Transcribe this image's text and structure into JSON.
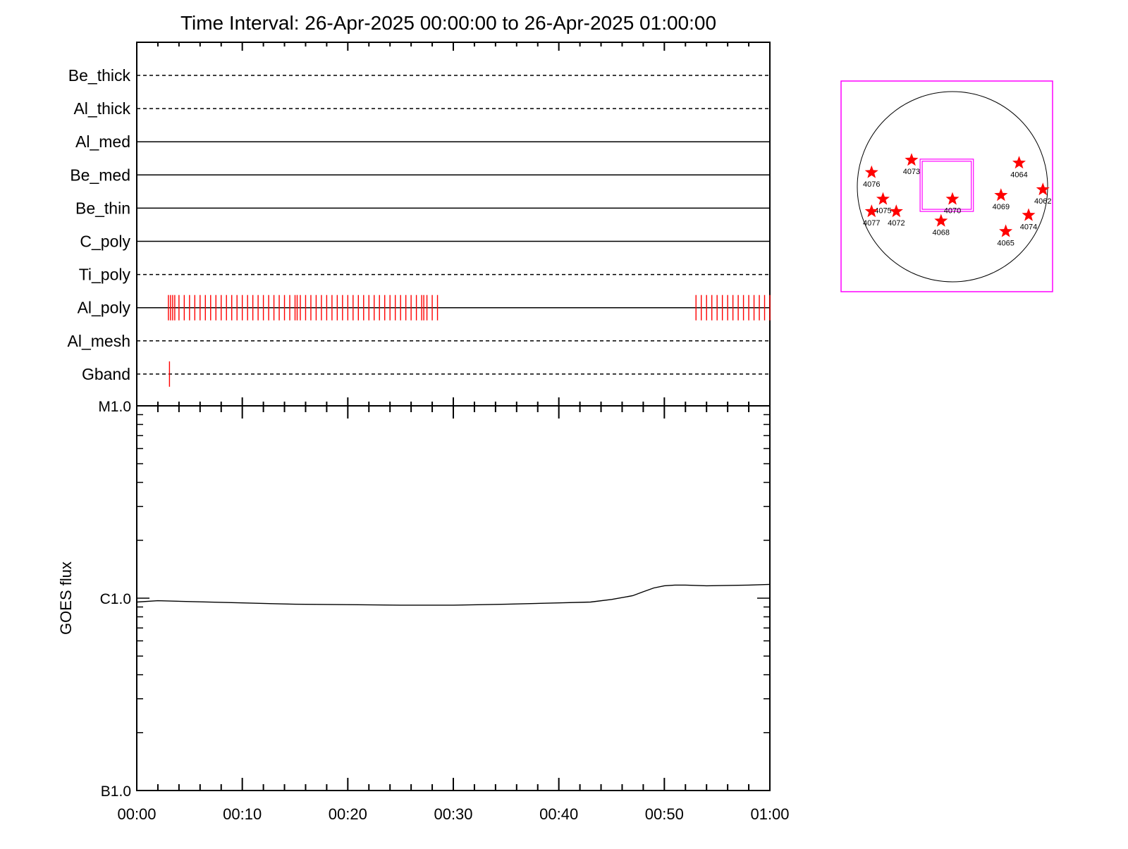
{
  "title": "Time Interval: 26-Apr-2025 00:00:00 to 26-Apr-2025 01:00:00",
  "colors": {
    "axis": "#000000",
    "events": "#ff0000",
    "fov_box": "#ff00ff",
    "star": "#ff0000",
    "disk": "#000000"
  },
  "chart_data": [
    {
      "type": "line",
      "subplot": "filter-timeline",
      "x_unit": "minutes after 00:00",
      "xlim": [
        0,
        60
      ],
      "channels": [
        {
          "name": "Be_thick",
          "line": "dashed",
          "events": []
        },
        {
          "name": "Al_thick",
          "line": "dashed",
          "events": []
        },
        {
          "name": "Al_med",
          "line": "solid",
          "events": []
        },
        {
          "name": "Be_med",
          "line": "solid",
          "events": []
        },
        {
          "name": "Be_thin",
          "line": "solid",
          "events": []
        },
        {
          "name": "C_poly",
          "line": "solid",
          "events": []
        },
        {
          "name": "Ti_poly",
          "line": "dashed",
          "events": []
        },
        {
          "name": "Al_poly",
          "line": "solid",
          "events": [
            3.0,
            3.2,
            3.4,
            3.6,
            4.0,
            4.5,
            5.0,
            5.5,
            6.0,
            6.5,
            7.0,
            7.5,
            8.0,
            8.5,
            9.0,
            9.5,
            10.0,
            10.5,
            11.0,
            11.5,
            12.0,
            12.5,
            13.0,
            13.5,
            14.0,
            14.5,
            15.0,
            15.2,
            15.5,
            16.0,
            16.5,
            17.0,
            17.5,
            18.0,
            18.5,
            19.0,
            19.5,
            20.0,
            20.5,
            21.0,
            21.5,
            22.0,
            22.5,
            23.0,
            23.5,
            24.0,
            24.5,
            25.0,
            25.5,
            26.0,
            26.5,
            27.0,
            27.2,
            27.5,
            28.0,
            28.5,
            53.0,
            53.5,
            54.0,
            54.5,
            55.0,
            55.5,
            56.0,
            56.5,
            57.0,
            57.5,
            58.0,
            58.5,
            59.0,
            59.5,
            60.0
          ]
        },
        {
          "name": "Al_mesh",
          "line": "dashed",
          "events": []
        },
        {
          "name": "Gband",
          "line": "dashed",
          "events": [
            3.1
          ]
        }
      ]
    },
    {
      "type": "line",
      "subplot": "goes-flux",
      "ylabel": "GOES flux",
      "x_unit": "minutes after 00:00",
      "xlim": [
        0,
        60
      ],
      "y_scale": "log",
      "ylim": [
        1e-07,
        1e-05
      ],
      "y_ticks": [
        {
          "label": "B1.0",
          "value": 1e-07
        },
        {
          "label": "C1.0",
          "value": 1e-06
        },
        {
          "label": "M1.0",
          "value": 1e-05
        }
      ],
      "x_ticks": [
        "00:00",
        "00:10",
        "00:20",
        "00:30",
        "00:40",
        "00:50",
        "01:00"
      ],
      "series": [
        {
          "x": [
            0,
            2,
            5,
            10,
            15,
            20,
            25,
            30,
            35,
            40,
            43,
            45,
            47,
            48,
            49,
            50,
            51,
            52,
            54,
            56,
            58,
            60
          ],
          "y": [
            9.55e-07,
            9.7e-07,
            9.6e-07,
            9.45e-07,
            9.3e-07,
            9.25e-07,
            9.2e-07,
            9.2e-07,
            9.3e-07,
            9.45e-07,
            9.55e-07,
            9.85e-07,
            1.03e-06,
            1.08e-06,
            1.13e-06,
            1.16e-06,
            1.17e-06,
            1.17e-06,
            1.16e-06,
            1.165e-06,
            1.17e-06,
            1.18e-06
          ]
        }
      ]
    },
    {
      "type": "scatter",
      "subplot": "solar-disk-map",
      "active_regions": [
        {
          "label": "4076",
          "x": -0.85,
          "y": 0.15
        },
        {
          "label": "4073",
          "x": -0.43,
          "y": 0.28
        },
        {
          "label": "4064",
          "x": 0.7,
          "y": 0.25
        },
        {
          "label": "4075",
          "x": -0.73,
          "y": -0.13
        },
        {
          "label": "4070",
          "x": 0.0,
          "y": -0.13
        },
        {
          "label": "4069",
          "x": 0.51,
          "y": -0.09
        },
        {
          "label": "4062",
          "x": 0.95,
          "y": -0.03
        },
        {
          "label": "4077",
          "x": -0.85,
          "y": -0.26
        },
        {
          "label": "4072",
          "x": -0.59,
          "y": -0.26
        },
        {
          "label": "4068",
          "x": -0.12,
          "y": -0.36
        },
        {
          "label": "4074",
          "x": 0.8,
          "y": -0.3
        },
        {
          "label": "4065",
          "x": 0.56,
          "y": -0.47
        }
      ],
      "fov": {
        "x0": -0.34,
        "x1": 0.22,
        "y0": 0.29,
        "y1": -0.26
      }
    }
  ]
}
